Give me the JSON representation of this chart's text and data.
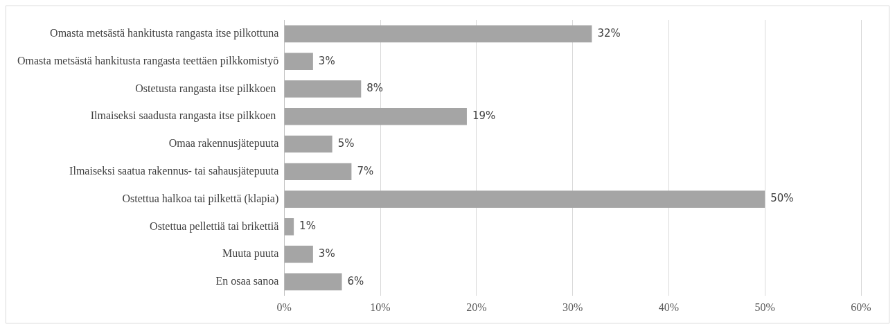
{
  "chart_data": {
    "type": "bar",
    "orientation": "horizontal",
    "categories": [
      "Omasta metsästä hankitusta rangasta itse pilkottuna",
      "Omasta metsästä hankitusta rangasta teettäen pilkkomistyö",
      "Ostetusta rangasta itse pilkkoen ",
      "Ilmaiseksi saadusta rangasta itse pilkkoen ",
      "Omaa rakennusjätepuuta",
      "Ilmaiseksi saatua rakennus- tai sahausjätepuuta",
      "Ostettua halkoa tai pilkettä (klapia)",
      "Ostettua pellettiä tai brikettiä",
      "Muuta puuta",
      "En osaa sanoa"
    ],
    "values": [
      32,
      3,
      8,
      19,
      5,
      7,
      50,
      1,
      3,
      6
    ],
    "value_labels": [
      "32%",
      "3%",
      "8%",
      "19%",
      "5%",
      "7%",
      "50%",
      "1%",
      "3%",
      "6%"
    ],
    "color": "#a5a5a5",
    "xlim": [
      0,
      60
    ],
    "xticks": [
      {
        "value": 0,
        "label": "0%"
      },
      {
        "value": 10,
        "label": "10%"
      },
      {
        "value": 20,
        "label": "20%"
      },
      {
        "value": 30,
        "label": "30%"
      },
      {
        "value": 40,
        "label": "40%"
      },
      {
        "value": 50,
        "label": "50%"
      },
      {
        "value": 60,
        "label": "60%"
      }
    ],
    "grid": "x",
    "legend": false
  }
}
